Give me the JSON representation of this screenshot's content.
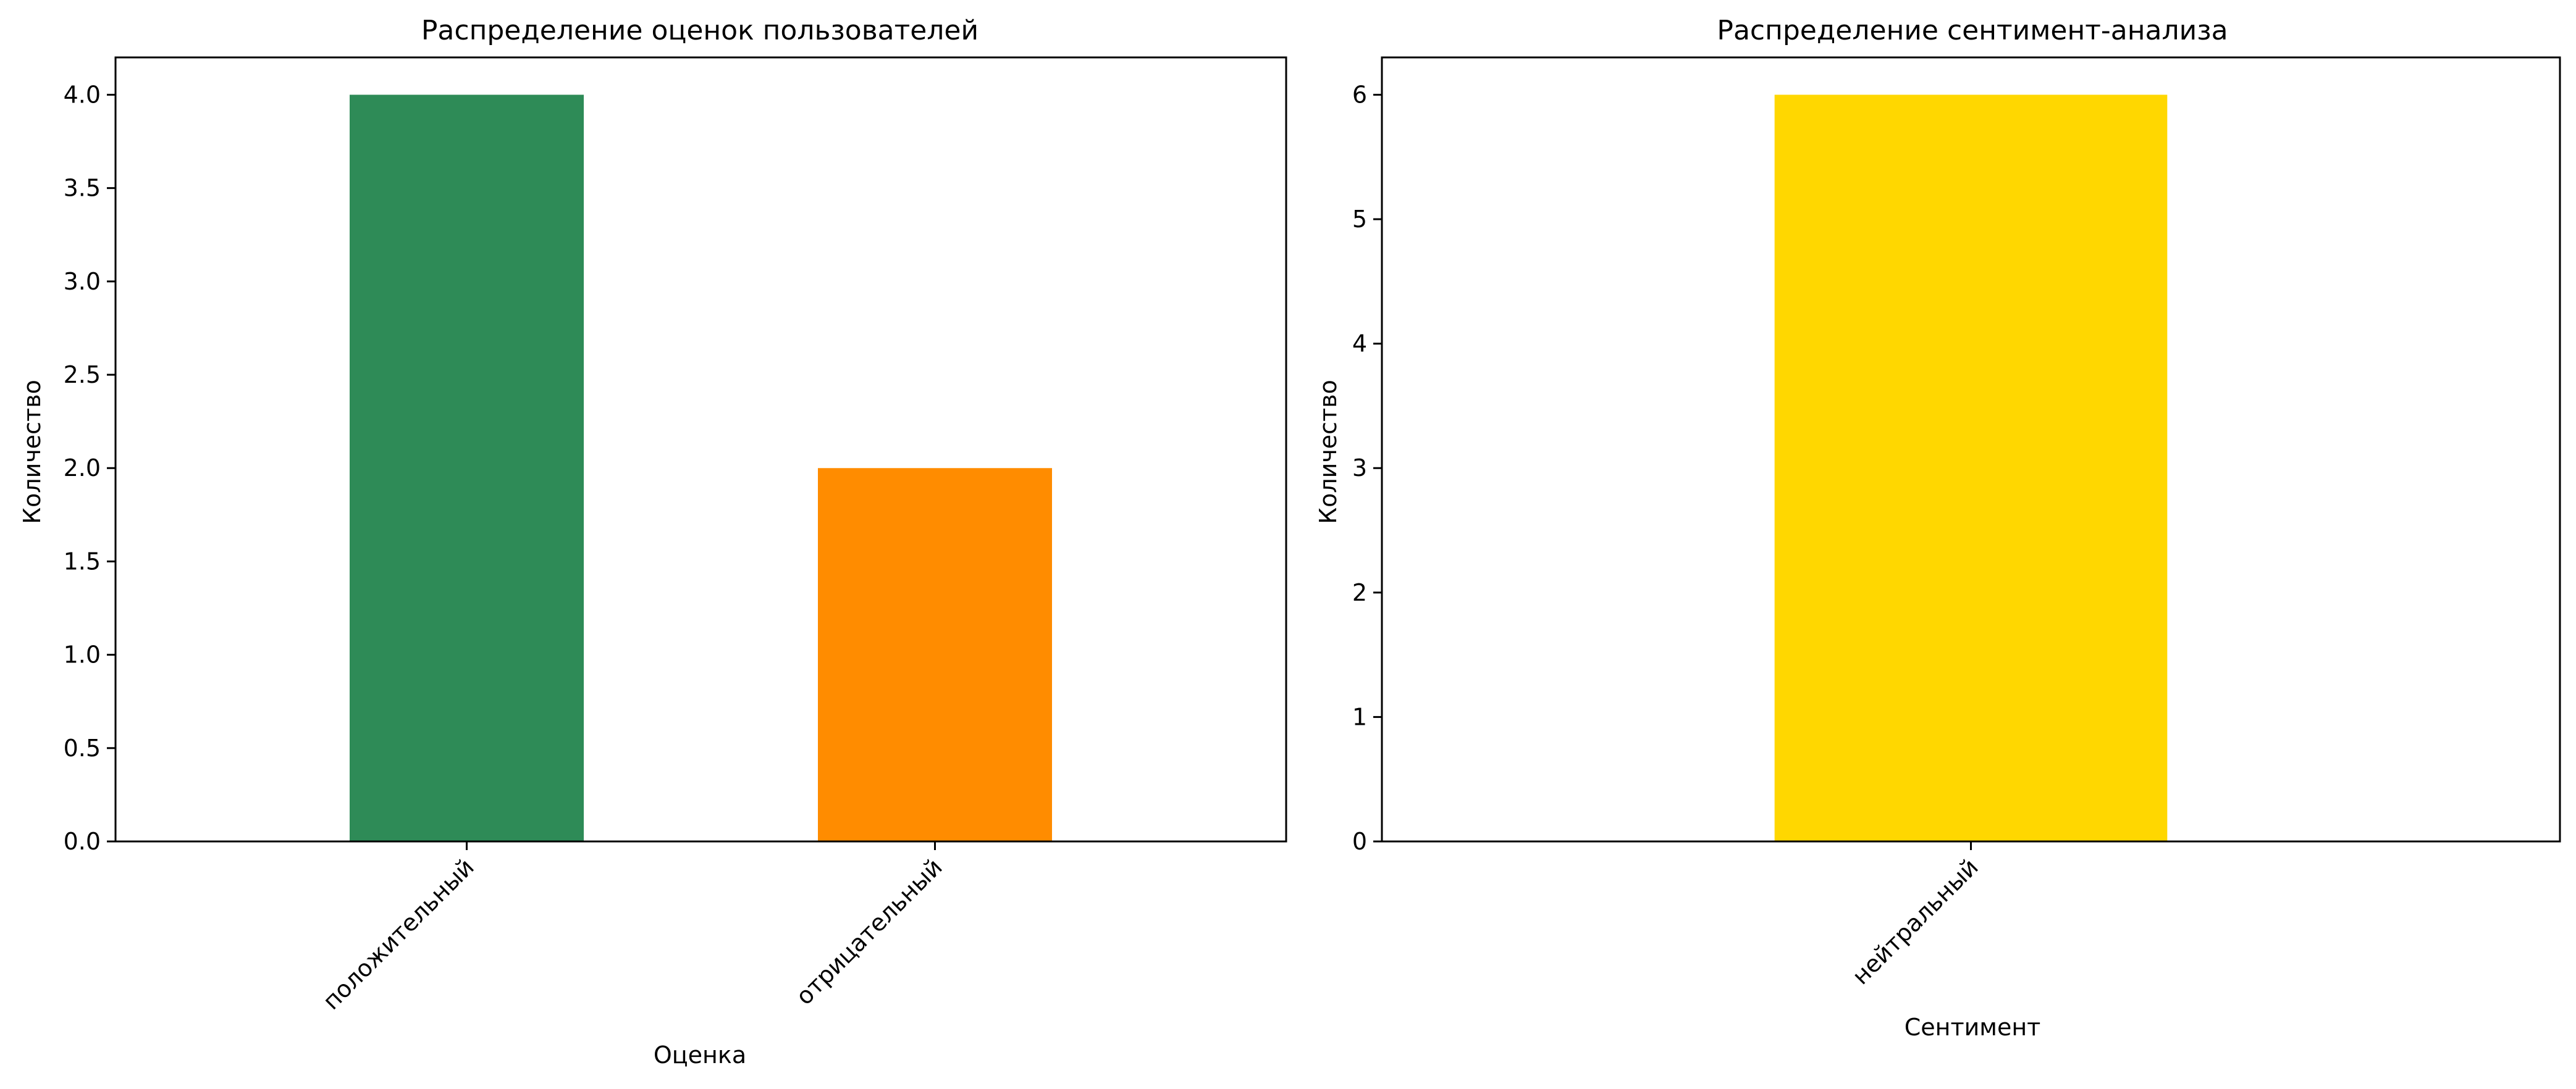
{
  "chart_data": [
    {
      "type": "bar",
      "title": "Распределение оценок пользователей",
      "xlabel": "Оценка",
      "ylabel": "Количество",
      "categories": [
        "положительный",
        "отрицательный"
      ],
      "values": [
        4,
        2
      ],
      "colors": [
        "#2e8b57",
        "#ff8c00"
      ],
      "ylim": [
        0,
        4.2
      ],
      "yticks": [
        "0.0",
        "0.5",
        "1.0",
        "1.5",
        "2.0",
        "2.5",
        "3.0",
        "3.5",
        "4.0"
      ],
      "grid": false,
      "legend": "none"
    },
    {
      "type": "bar",
      "title": "Распределение сентимент-анализа",
      "xlabel": "Сентимент",
      "ylabel": "Количество",
      "categories": [
        "нейтральный"
      ],
      "values": [
        6
      ],
      "colors": [
        "#ffd700"
      ],
      "ylim": [
        0,
        6.3
      ],
      "yticks": [
        "0",
        "1",
        "2",
        "3",
        "4",
        "5",
        "6"
      ],
      "grid": false,
      "legend": "none"
    }
  ]
}
